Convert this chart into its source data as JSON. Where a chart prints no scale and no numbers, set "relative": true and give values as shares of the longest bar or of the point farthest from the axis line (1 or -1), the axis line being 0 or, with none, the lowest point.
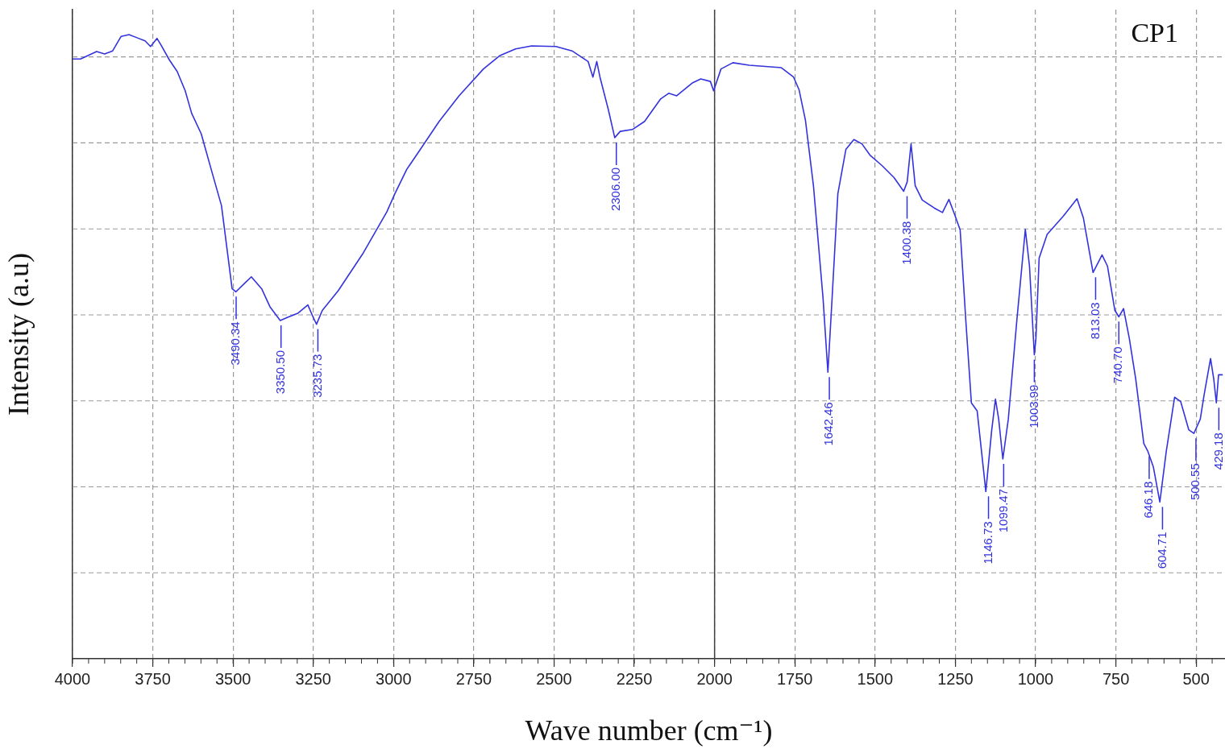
{
  "chart_data": {
    "type": "line",
    "relative": true,
    "xlabel": "Wave number (cm⁻¹)",
    "ylabel": "Intensity (a.u)",
    "xlim": [
      4000,
      410
    ],
    "xticks": [
      4000,
      3750,
      3500,
      3250,
      3000,
      2750,
      2500,
      2250,
      2000,
      1750,
      1500,
      1250,
      1000,
      750,
      500
    ],
    "grid": true,
    "legend": false,
    "marker": "none",
    "line_style": "solid",
    "ref_lines": [
      {
        "axis": "x",
        "value": 2000,
        "color": "#404040",
        "line_style": "solid"
      }
    ],
    "annotations": [
      "CP1",
      {
        "text": "3490.34",
        "x": 3490.34,
        "y": 0.588
      },
      {
        "text": "3350.50",
        "x": 3350.5,
        "y": 0.542
      },
      {
        "text": "3235.73",
        "x": 3235.73,
        "y": 0.536
      },
      {
        "text": "2306.00",
        "x": 2306,
        "y": 0.835
      },
      {
        "text": "1642.46",
        "x": 1642.46,
        "y": 0.459
      },
      {
        "text": "1400.38",
        "x": 1400.38,
        "y": 0.749
      },
      {
        "text": "1146.73",
        "x": 1146.73,
        "y": 0.268
      },
      {
        "text": "1099.47",
        "x": 1099.47,
        "y": 0.32
      },
      {
        "text": "1003.99",
        "x": 1003.99,
        "y": 0.487
      },
      {
        "text": "813.03",
        "x": 813.03,
        "y": 0.619
      },
      {
        "text": "740.70",
        "x": 740.7,
        "y": 0.548
      },
      {
        "text": "646.18",
        "x": 646.18,
        "y": 0.332
      },
      {
        "text": "604.71",
        "x": 604.71,
        "y": 0.251
      },
      {
        "text": "500.55",
        "x": 500.55,
        "y": 0.361
      },
      {
        "text": "429.18",
        "x": 429.18,
        "y": 0.41
      }
    ],
    "series": [
      {
        "color": "#3333dd",
        "x": [
          4000,
          3975,
          3925,
          3900,
          3875,
          3849,
          3824,
          3799,
          3774,
          3757,
          3737,
          3724,
          3699,
          3674,
          3649,
          3629,
          3599,
          3568,
          3536,
          3503,
          3491,
          3461,
          3443,
          3411,
          3385,
          3353,
          3330,
          3297,
          3267,
          3252,
          3240,
          3222,
          3172,
          3097,
          3021,
          2996,
          2959,
          2909,
          2858,
          2796,
          2720,
          2670,
          2620,
          2570,
          2494,
          2444,
          2394,
          2379,
          2367,
          2357,
          2331,
          2311,
          2294,
          2256,
          2218,
          2168,
          2143,
          2118,
          2068,
          2043,
          2013,
          2003,
          1980,
          1943,
          1892,
          1792,
          1754,
          1737,
          1717,
          1692,
          1662,
          1647,
          1634,
          1616,
          1591,
          1566,
          1541,
          1516,
          1478,
          1441,
          1411,
          1400,
          1388,
          1375,
          1353,
          1315,
          1290,
          1270,
          1253,
          1235,
          1217,
          1200,
          1182,
          1155,
          1137,
          1125,
          1115,
          1102,
          1085,
          1059,
          1032,
          1019,
          1004,
          999,
          989,
          964,
          914,
          871,
          851,
          821,
          793,
          776,
          753,
          740.7,
          726,
          708,
          688,
          663,
          650,
          633,
          613,
          593,
          567,
          548,
          523,
          507,
          487,
          475,
          455,
          445,
          437,
          430,
          417
        ],
        "values": [
          0.961,
          0.961,
          0.973,
          0.969,
          0.974,
          0.997,
          1,
          0.995,
          0.99,
          0.981,
          0.994,
          0.983,
          0.96,
          0.941,
          0.91,
          0.874,
          0.841,
          0.784,
          0.726,
          0.593,
          0.588,
          0.603,
          0.612,
          0.593,
          0.564,
          0.542,
          0.547,
          0.554,
          0.567,
          0.549,
          0.536,
          0.558,
          0.59,
          0.648,
          0.716,
          0.745,
          0.784,
          0.822,
          0.861,
          0.902,
          0.945,
          0.966,
          0.977,
          0.982,
          0.981,
          0.974,
          0.957,
          0.932,
          0.957,
          0.932,
          0.88,
          0.835,
          0.845,
          0.848,
          0.861,
          0.897,
          0.906,
          0.902,
          0.923,
          0.929,
          0.925,
          0.91,
          0.945,
          0.955,
          0.951,
          0.947,
          0.932,
          0.912,
          0.863,
          0.758,
          0.577,
          0.459,
          0.577,
          0.745,
          0.816,
          0.832,
          0.825,
          0.807,
          0.79,
          0.771,
          0.749,
          0.764,
          0.825,
          0.758,
          0.735,
          0.722,
          0.715,
          0.736,
          0.713,
          0.687,
          0.539,
          0.41,
          0.397,
          0.268,
          0.365,
          0.416,
          0.384,
          0.32,
          0.384,
          0.539,
          0.688,
          0.629,
          0.487,
          0.513,
          0.642,
          0.68,
          0.709,
          0.737,
          0.706,
          0.619,
          0.647,
          0.629,
          0.558,
          0.548,
          0.561,
          0.513,
          0.448,
          0.345,
          0.332,
          0.307,
          0.251,
          0.332,
          0.419,
          0.412,
          0.367,
          0.361,
          0.384,
          0.423,
          0.481,
          0.448,
          0.41,
          0.455,
          0.455
        ]
      }
    ]
  }
}
